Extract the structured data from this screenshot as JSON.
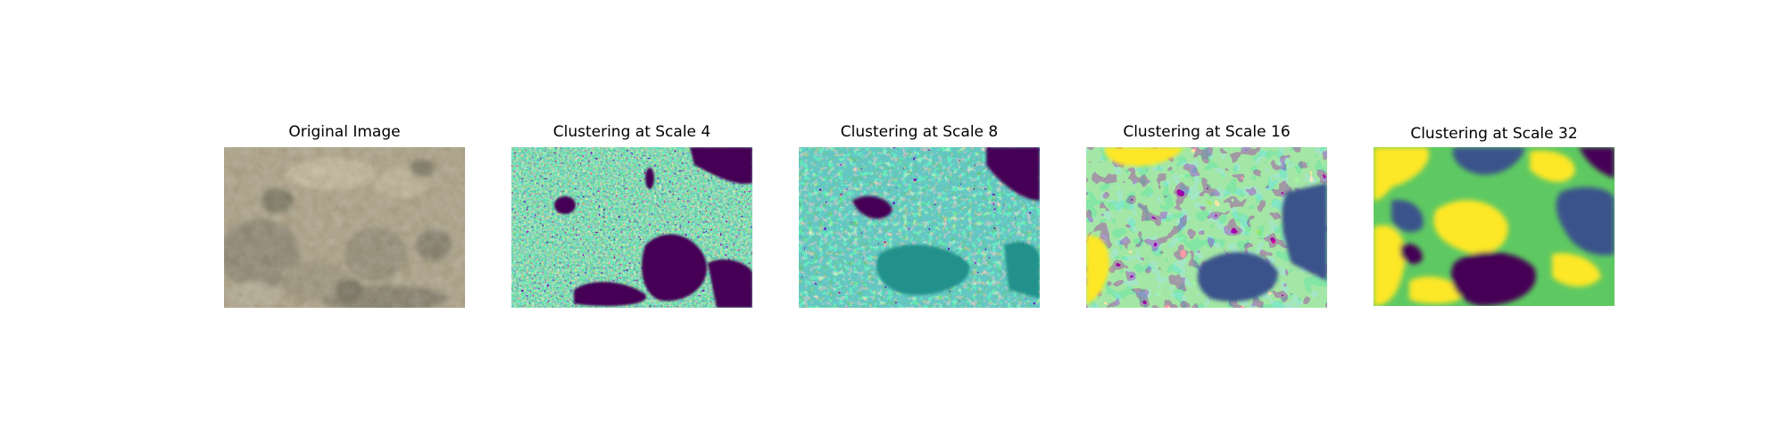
{
  "figure": {
    "panels": [
      {
        "title": "Original Image",
        "image": "aerial-terrain-photo"
      },
      {
        "title": "Clustering at Scale 4",
        "image": "cluster-map-scale-4"
      },
      {
        "title": "Clustering at Scale 8",
        "image": "cluster-map-scale-8"
      },
      {
        "title": "Clustering at Scale 16",
        "image": "cluster-map-scale-16"
      },
      {
        "title": "Clustering at Scale 32",
        "image": "cluster-map-scale-32"
      }
    ],
    "colors": {
      "cluster_0": "#440154",
      "cluster_1": "#3b528b",
      "cluster_2": "#21918c",
      "cluster_3": "#5ec962",
      "cluster_4": "#fde725"
    }
  }
}
